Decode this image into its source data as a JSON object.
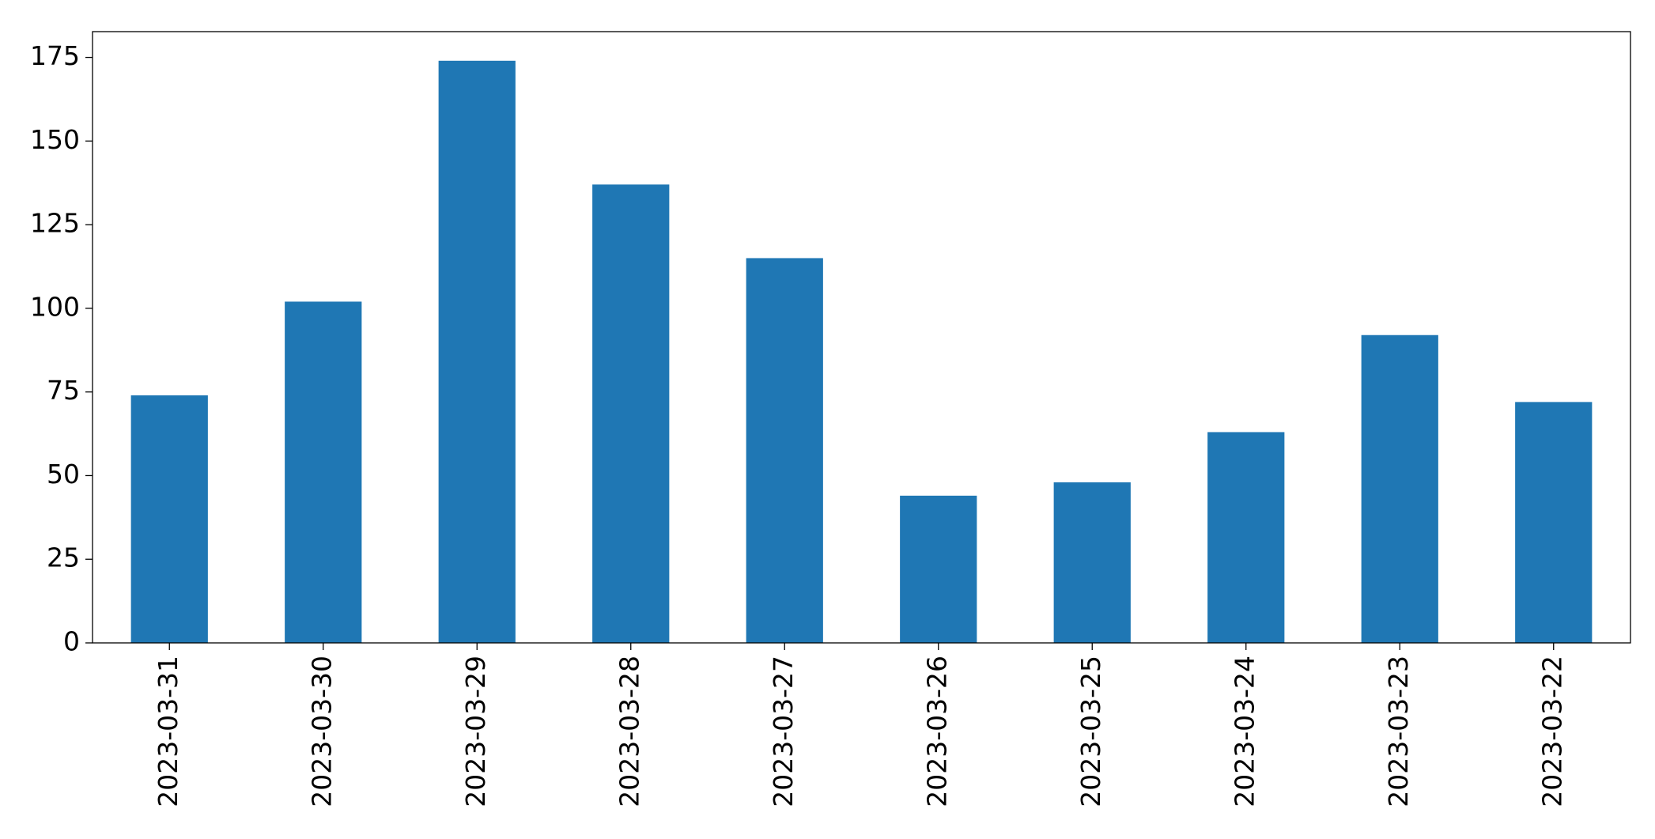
{
  "chart_data": {
    "type": "bar",
    "categories": [
      "2023-03-31",
      "2023-03-30",
      "2023-03-29",
      "2023-03-28",
      "2023-03-27",
      "2023-03-26",
      "2023-03-25",
      "2023-03-24",
      "2023-03-23",
      "2023-03-22"
    ],
    "values": [
      74,
      102,
      174,
      137,
      115,
      44,
      48,
      63,
      92,
      72
    ],
    "color": "#1f77b4",
    "ylim": [
      0,
      182.7
    ],
    "yticks": [
      0,
      25,
      50,
      75,
      100,
      125,
      150,
      175
    ],
    "grid": false
  }
}
